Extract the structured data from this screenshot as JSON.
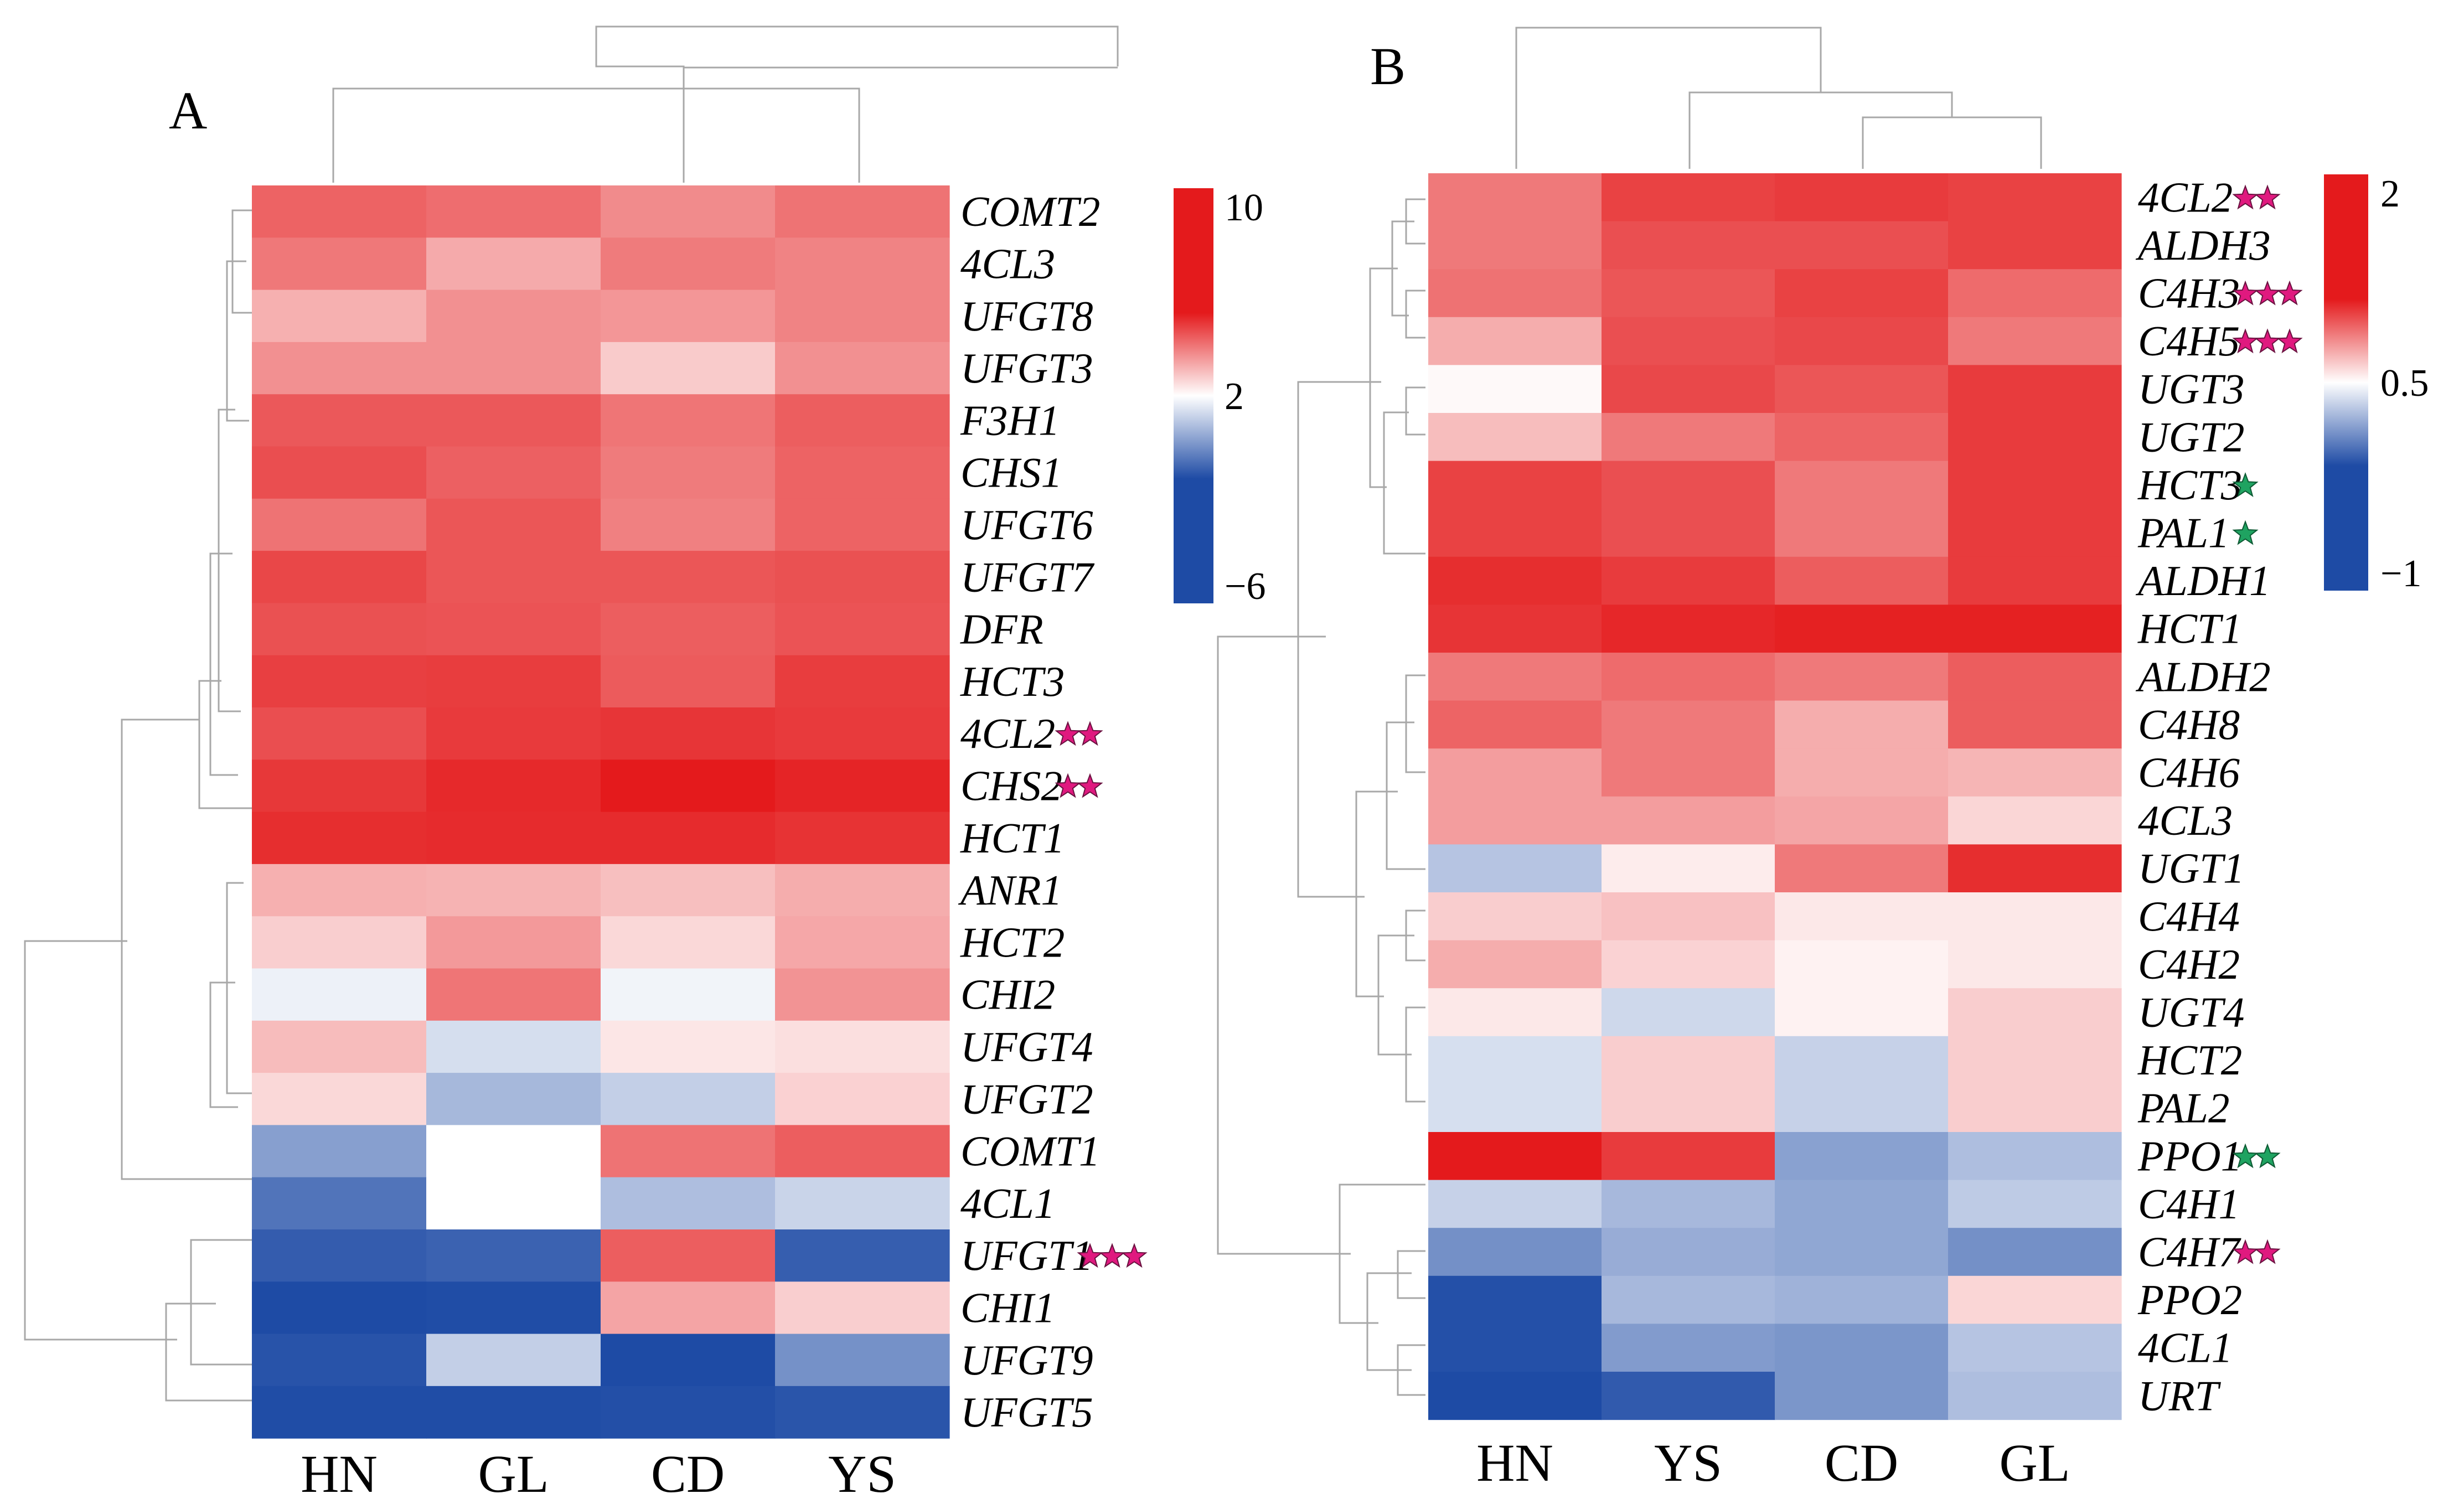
{
  "chart_data": [
    {
      "panel": "A",
      "type": "heatmap",
      "columns": [
        "HN",
        "GL",
        "CD",
        "YS"
      ],
      "rows": [
        {
          "gene": "COMT2",
          "stars": 0,
          "star_color": "",
          "values": [
            7.1,
            6.7,
            5.6,
            6.5
          ]
        },
        {
          "gene": "4CL3",
          "stars": 0,
          "star_color": "",
          "values": [
            6.3,
            4.5,
            6.2,
            5.9
          ]
        },
        {
          "gene": "UFGT8",
          "stars": 0,
          "star_color": "",
          "values": [
            4.3,
            5.4,
            5.2,
            5.9
          ]
        },
        {
          "gene": "UFGT3",
          "stars": 0,
          "star_color": "",
          "values": [
            5.4,
            5.4,
            3.4,
            5.4
          ]
        },
        {
          "gene": "F3H1",
          "stars": 0,
          "star_color": "",
          "values": [
            7.5,
            7.5,
            6.4,
            7.3
          ]
        },
        {
          "gene": "CHS1",
          "stars": 0,
          "star_color": "",
          "values": [
            7.9,
            7.2,
            6.2,
            7.1
          ]
        },
        {
          "gene": "UFGT6",
          "stars": 0,
          "star_color": "",
          "values": [
            6.5,
            7.6,
            6.0,
            7.1
          ]
        },
        {
          "gene": "UFGT7",
          "stars": 0,
          "star_color": "",
          "values": [
            8.2,
            7.6,
            7.6,
            7.8
          ]
        },
        {
          "gene": "DFR",
          "stars": 0,
          "star_color": "",
          "values": [
            7.8,
            7.7,
            7.3,
            7.7
          ]
        },
        {
          "gene": "HCT3",
          "stars": 0,
          "star_color": "",
          "values": [
            8.5,
            8.6,
            7.4,
            8.6
          ]
        },
        {
          "gene": "4CL2",
          "stars": 2,
          "star_color": "#e0197f",
          "values": [
            7.9,
            8.7,
            8.9,
            8.7
          ]
        },
        {
          "gene": "CHS2",
          "stars": 2,
          "star_color": "#e0197f",
          "values": [
            8.8,
            9.4,
            10.0,
            9.6
          ]
        },
        {
          "gene": "HCT1",
          "stars": 0,
          "star_color": "",
          "values": [
            9.2,
            9.3,
            9.3,
            9.0
          ]
        },
        {
          "gene": "ANR1",
          "stars": 0,
          "star_color": "",
          "values": [
            4.3,
            4.2,
            3.8,
            4.4
          ]
        },
        {
          "gene": "HCT2",
          "stars": 0,
          "star_color": "",
          "values": [
            3.3,
            5.1,
            3.0,
            4.6
          ]
        },
        {
          "gene": "CHI2",
          "stars": 0,
          "star_color": "",
          "values": [
            1.6,
            6.4,
            1.7,
            5.3
          ]
        },
        {
          "gene": "UFGT4",
          "stars": 0,
          "star_color": "",
          "values": [
            3.9,
            0.9,
            2.6,
            2.8
          ]
        },
        {
          "gene": "UFGT2",
          "stars": 0,
          "star_color": "",
          "values": [
            3.0,
            -0.7,
            0.3,
            3.2
          ]
        },
        {
          "gene": "COMT1",
          "stars": 0,
          "star_color": "",
          "values": [
            -1.8,
            2.0,
            6.5,
            7.3
          ]
        },
        {
          "gene": "4CL1",
          "stars": 0,
          "star_color": "",
          "values": [
            -3.9,
            2.0,
            -0.4,
            0.5
          ]
        },
        {
          "gene": "UFGT1",
          "stars": 3,
          "star_color": "#e0197f",
          "values": [
            -5.1,
            -4.8,
            7.3,
            -5.0
          ]
        },
        {
          "gene": "CHI1",
          "stars": 0,
          "star_color": "",
          "values": [
            -6.0,
            -5.9,
            4.7,
            3.3
          ]
        },
        {
          "gene": "UFGT9",
          "stars": 0,
          "star_color": "",
          "values": [
            -5.6,
            0.3,
            -6.0,
            -2.5
          ]
        },
        {
          "gene": "UFGT5",
          "stars": 0,
          "star_color": "",
          "values": [
            -5.9,
            -5.9,
            -5.8,
            -5.5
          ]
        }
      ],
      "colorbar": {
        "min": -6,
        "max": 10,
        "mid": 2,
        "ticks": [
          "10",
          "2",
          "−6"
        ],
        "tick_values": [
          10,
          2,
          -6
        ]
      },
      "colors": {
        "low": "#1e4ba5",
        "mid": "#ffffff",
        "high": "#e41a1c"
      }
    },
    {
      "panel": "B",
      "type": "heatmap",
      "columns": [
        "HN",
        "YS",
        "CD",
        "GL"
      ],
      "rows": [
        {
          "gene": "4CL2",
          "stars": 2,
          "star_color": "#e0197f",
          "values": [
            1.3,
            1.7,
            1.75,
            1.7
          ]
        },
        {
          "gene": "ALDH3",
          "stars": 0,
          "star_color": "",
          "values": [
            1.3,
            1.6,
            1.6,
            1.7
          ]
        },
        {
          "gene": "C4H3",
          "stars": 3,
          "star_color": "#e0197f",
          "values": [
            1.35,
            1.55,
            1.7,
            1.4
          ]
        },
        {
          "gene": "C4H5",
          "stars": 3,
          "star_color": "#e0197f",
          "values": [
            0.95,
            1.6,
            1.65,
            1.3
          ]
        },
        {
          "gene": "UGT3",
          "stars": 0,
          "star_color": "",
          "values": [
            0.52,
            1.65,
            1.55,
            1.75
          ]
        },
        {
          "gene": "UGT2",
          "stars": 0,
          "star_color": "",
          "values": [
            0.85,
            1.3,
            1.45,
            1.75
          ]
        },
        {
          "gene": "HCT3",
          "stars": 1,
          "star_color": "#1fa361",
          "values": [
            1.7,
            1.6,
            1.3,
            1.75
          ]
        },
        {
          "gene": "PAL1",
          "stars": 1,
          "star_color": "#1fa361",
          "values": [
            1.7,
            1.6,
            1.3,
            1.75
          ]
        },
        {
          "gene": "ALDH1",
          "stars": 0,
          "star_color": "",
          "values": [
            1.85,
            1.75,
            1.5,
            1.75
          ]
        },
        {
          "gene": "HCT1",
          "stars": 0,
          "star_color": "",
          "values": [
            1.8,
            1.9,
            1.95,
            1.95
          ]
        },
        {
          "gene": "ALDH2",
          "stars": 0,
          "star_color": "",
          "values": [
            1.3,
            1.4,
            1.3,
            1.5
          ]
        },
        {
          "gene": "C4H8",
          "stars": 0,
          "star_color": "",
          "values": [
            1.45,
            1.3,
            0.95,
            1.5
          ]
        },
        {
          "gene": "C4H6",
          "stars": 0,
          "star_color": "",
          "values": [
            1.05,
            1.3,
            0.95,
            0.9
          ]
        },
        {
          "gene": "4CL3",
          "stars": 0,
          "star_color": "",
          "values": [
            1.05,
            1.05,
            1.0,
            0.7
          ]
        },
        {
          "gene": "UGT1",
          "stars": 0,
          "star_color": "",
          "values": [
            0.1,
            0.58,
            1.3,
            1.85
          ]
        },
        {
          "gene": "C4H4",
          "stars": 0,
          "star_color": "",
          "values": [
            0.75,
            0.82,
            0.6,
            0.6
          ]
        },
        {
          "gene": "C4H2",
          "stars": 0,
          "star_color": "",
          "values": [
            0.95,
            0.72,
            0.55,
            0.6
          ]
        },
        {
          "gene": "UGT4",
          "stars": 0,
          "star_color": "",
          "values": [
            0.6,
            0.25,
            0.55,
            0.75
          ]
        },
        {
          "gene": "HCT2",
          "stars": 0,
          "star_color": "",
          "values": [
            0.3,
            0.75,
            0.2,
            0.75
          ]
        },
        {
          "gene": "PAL2",
          "stars": 0,
          "star_color": "",
          "values": [
            0.3,
            0.75,
            0.2,
            0.75
          ]
        },
        {
          "gene": "PPO1",
          "stars": 2,
          "star_color": "#1fa361",
          "values": [
            2.0,
            1.75,
            -0.2,
            0.05
          ]
        },
        {
          "gene": "C4H1",
          "stars": 0,
          "star_color": "",
          "values": [
            0.2,
            0.0,
            -0.15,
            0.15
          ]
        },
        {
          "gene": "C4H7",
          "stars": 2,
          "star_color": "#e0197f",
          "values": [
            -0.35,
            -0.1,
            -0.15,
            -0.35
          ]
        },
        {
          "gene": "PPO2",
          "stars": 0,
          "star_color": "",
          "values": [
            -0.95,
            0.0,
            -0.05,
            0.7
          ]
        },
        {
          "gene": "4CL1",
          "stars": 0,
          "star_color": "",
          "values": [
            -0.95,
            -0.25,
            -0.3,
            0.1
          ]
        },
        {
          "gene": "URT",
          "stars": 0,
          "star_color": "",
          "values": [
            -1.0,
            -0.85,
            -0.3,
            0.05
          ]
        }
      ],
      "colorbar": {
        "min": -1,
        "max": 2,
        "mid": 0.5,
        "ticks": [
          "2",
          "0.5",
          "−1"
        ],
        "tick_values": [
          2,
          0.5,
          -1
        ]
      },
      "colors": {
        "low": "#1e4ba5",
        "mid": "#ffffff",
        "high": "#e41a1c"
      }
    }
  ]
}
